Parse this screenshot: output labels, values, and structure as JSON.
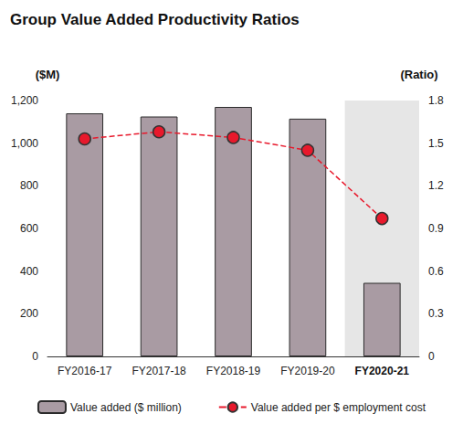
{
  "chart_data": {
    "type": "bar",
    "title": "Group Value Added Productivity Ratios",
    "ylabel": "($M)",
    "y2label": "(Ratio)",
    "categories": [
      "FY2016-17",
      "FY2017-18",
      "FY2018-19",
      "FY2019-20",
      "FY2020-21"
    ],
    "series": [
      {
        "name": "Value added ($ million)",
        "type": "bar",
        "color": "#a99ba3",
        "values": [
          1140,
          1125,
          1170,
          1115,
          345
        ]
      },
      {
        "name": "Value added per $ employment cost",
        "type": "line",
        "axis": "y2",
        "color": "#e8192c",
        "marker": "circle",
        "line_style": "dashed",
        "values": [
          1.53,
          1.58,
          1.54,
          1.45,
          0.97
        ]
      }
    ],
    "ylim": [
      0,
      1200
    ],
    "yticks": [
      0,
      200,
      400,
      600,
      800,
      {
        "value": 1000,
        "label": "1,000"
      },
      {
        "value": 1200,
        "label": "1,200"
      }
    ],
    "y2lim": [
      0,
      1.8
    ],
    "y2ticks": [
      0,
      0.3,
      0.6,
      0.9,
      1.2,
      1.5,
      1.8
    ],
    "grid": false,
    "legend": "bottom"
  }
}
